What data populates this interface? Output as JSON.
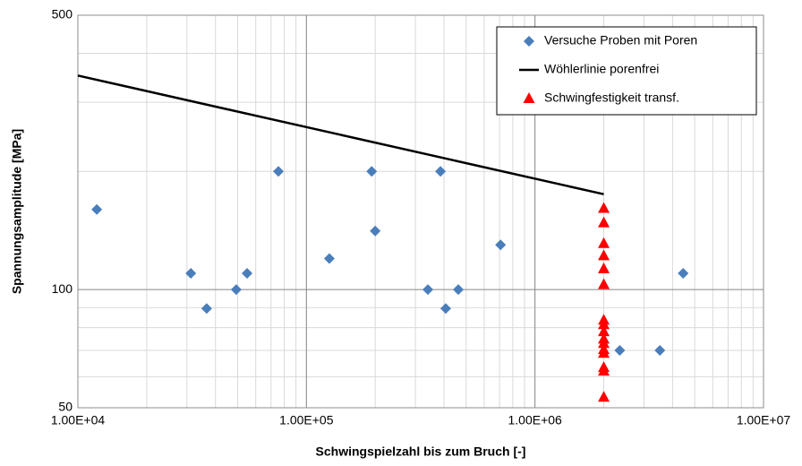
{
  "chart_data": {
    "type": "scatter",
    "x_label": "Schwingspielzahl bis zum Bruch [-]",
    "y_label": "Spannungsamplitude [MPa]",
    "x_log": true,
    "y_log": true,
    "grid": true,
    "minor_grid": true,
    "xlim": [
      10000,
      10000000
    ],
    "xticks": [
      {
        "value": 10000,
        "label": "1.00E+04"
      },
      {
        "value": 100000,
        "label": "1.00E+05"
      },
      {
        "value": 1000000,
        "label": "1.00E+06"
      },
      {
        "value": 10000000,
        "label": "1.00E+07"
      }
    ],
    "ylim": [
      50,
      500
    ],
    "yticks": [
      50,
      100,
      500
    ],
    "legend": "upper right",
    "series": [
      {
        "name": "Versuche Proben mit Poren",
        "type": "scatter",
        "marker": "diamond",
        "color": "#4a7ebb",
        "x": [
          12100,
          31200,
          36600,
          49300,
          55000,
          75400,
          126000,
          193000,
          200000,
          340000,
          386000,
          407000,
          462000,
          707000,
          2350000,
          3520000,
          4450000
        ],
        "values": [
          160,
          110,
          89.5,
          100,
          110,
          200,
          120,
          200,
          141,
          100,
          200,
          89.5,
          100,
          130,
          70,
          70,
          110
        ]
      },
      {
        "name": "Wöhlerlinie porenfrei",
        "type": "line",
        "color": "#000000",
        "x": [
          10000,
          2000000
        ],
        "values": [
          351,
          175
        ]
      },
      {
        "name": "Schwingfestigkeit transf.",
        "type": "scatter",
        "marker": "triangle",
        "color": "#ff0000",
        "x": [
          2000000,
          2000000,
          2000000,
          2000000,
          2000000,
          2000000,
          2000000,
          2000000,
          2000000,
          2000000,
          2000000,
          2000000,
          2000000,
          2000000,
          2000000,
          2000000
        ],
        "values": [
          161,
          148,
          131,
          122,
          113,
          103,
          83.6,
          81.4,
          78.1,
          74.8,
          72.9,
          70.3,
          68.8,
          63.3,
          62,
          53.2
        ]
      }
    ]
  }
}
